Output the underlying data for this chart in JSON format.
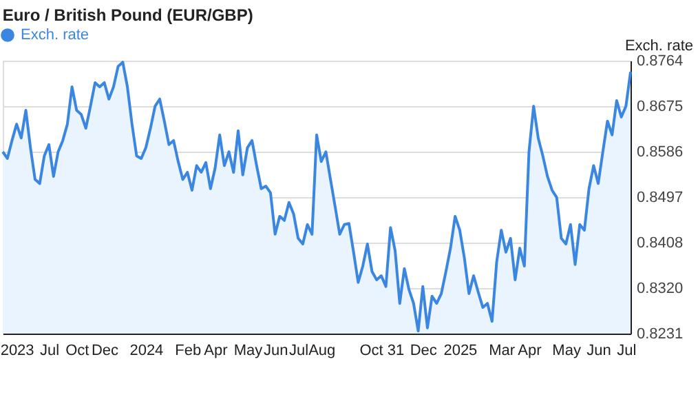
{
  "chart_data": {
    "type": "area",
    "title": "Euro / British Pound (EUR/GBP)",
    "y2label": "Exch. rate",
    "categories": [
      null,
      null,
      null,
      "2023",
      null,
      null,
      null,
      null,
      null,
      null,
      "Jul",
      null,
      null,
      null,
      null,
      null,
      "Oct",
      null,
      null,
      null,
      null,
      null,
      "Dec",
      null,
      null,
      null,
      null,
      null,
      null,
      null,
      null,
      "2024",
      null,
      null,
      null,
      null,
      null,
      null,
      null,
      null,
      "Feb",
      null,
      null,
      null,
      null,
      null,
      "Apr",
      null,
      null,
      null,
      null,
      null,
      null,
      "May",
      null,
      null,
      null,
      null,
      null,
      "Jun",
      null,
      null,
      null,
      null,
      "Jul",
      null,
      null,
      null,
      null,
      "Aug",
      null,
      null,
      null,
      null,
      null,
      null,
      null,
      null,
      null,
      null,
      null,
      null,
      "Oct 31",
      null,
      null,
      null,
      null,
      null,
      null,
      null,
      null,
      "Dec",
      null,
      null,
      null,
      null,
      null,
      null,
      null,
      "2025",
      null,
      null,
      null,
      null,
      null,
      null,
      null,
      null,
      "Mar",
      null,
      null,
      null,
      null,
      null,
      "Apr",
      null,
      null,
      null,
      null,
      null,
      null,
      null,
      "May",
      null,
      null,
      null,
      null,
      null,
      null,
      "Jun",
      null,
      null,
      null,
      null,
      null,
      "Jul",
      null
    ],
    "y2lim": [
      0.8231,
      0.8764
    ],
    "y2ticks": [
      0.8231,
      {
        "value": 0.832,
        "label": "0.8320"
      },
      0.8408,
      0.8497,
      0.8586,
      0.8675,
      0.8764
    ],
    "grid": "y",
    "legend": "top left",
    "series": [
      {
        "name": "Exch. rate",
        "color": "#3b86e0",
        "axis": "y2",
        "values": [
          0.8586,
          0.8573,
          0.8608,
          0.864,
          0.8613,
          0.8667,
          0.8594,
          0.8532,
          0.8524,
          0.8578,
          0.86,
          0.8538,
          0.8586,
          0.8608,
          0.864,
          0.8713,
          0.8667,
          0.8659,
          0.8632,
          0.8675,
          0.8721,
          0.8713,
          0.8721,
          0.8689,
          0.8713,
          0.8753,
          0.8761,
          0.8713,
          0.864,
          0.8578,
          0.8573,
          0.8594,
          0.8632,
          0.8675,
          0.8689,
          0.8646,
          0.86,
          0.8608,
          0.8567,
          0.8532,
          0.8546,
          0.8511,
          0.8559,
          0.8546,
          0.8565,
          0.8514,
          0.8554,
          0.8619,
          0.8559,
          0.8586,
          0.8546,
          0.8627,
          0.8541,
          0.8594,
          0.8608,
          0.8559,
          0.8514,
          0.8519,
          0.8506,
          0.8425,
          0.846,
          0.8452,
          0.8487,
          0.8465,
          0.8417,
          0.8406,
          0.8444,
          0.8425,
          0.8619,
          0.8567,
          0.8586,
          0.8532,
          0.8479,
          0.8425,
          0.8444,
          0.8446,
          0.839,
          0.8331,
          0.8363,
          0.8406,
          0.8352,
          0.8336,
          0.8344,
          0.8323,
          0.8438,
          0.8393,
          0.829,
          0.8358,
          0.8317,
          0.829,
          0.8236,
          0.8323,
          0.8242,
          0.8304,
          0.829,
          0.8309,
          0.8352,
          0.8398,
          0.846,
          0.8433,
          0.8379,
          0.8309,
          0.8344,
          0.8312,
          0.8282,
          0.829,
          0.8255,
          0.8371,
          0.8433,
          0.839,
          0.8417,
          0.8336,
          0.8398,
          0.8363,
          0.8586,
          0.8675,
          0.8613,
          0.8578,
          0.8538,
          0.8511,
          0.8497,
          0.8417,
          0.8406,
          0.8444,
          0.8366,
          0.8444,
          0.8433,
          0.8514,
          0.8559,
          0.8524,
          0.8586,
          0.8646,
          0.8619,
          0.8686,
          0.8654,
          0.8675,
          0.8742
        ]
      }
    ]
  }
}
